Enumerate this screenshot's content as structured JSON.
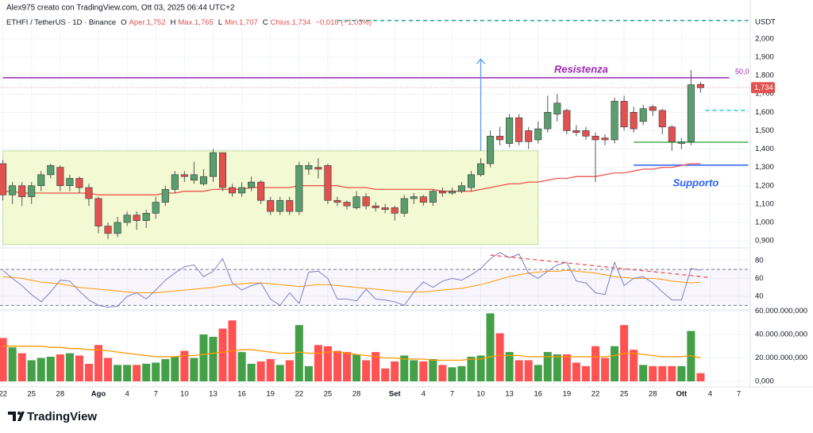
{
  "chart_data": {
    "type": "candlestick",
    "title": "Alex975 creato con TradingView.com, Ott 03, 2025 06:44 UTC+2",
    "symbol": "ETHFI / TetherUS · 1D · Binance",
    "ohlc_legend": [
      {
        "letter": "O",
        "text": "Aper.1,752"
      },
      {
        "letter": "H",
        "text": "Max.1,765"
      },
      {
        "letter": "L",
        "text": "Min.1,707"
      },
      {
        "letter": "C",
        "text": "Chius.1,734"
      }
    ],
    "change": "−0,018 (−1,03%)",
    "logo": "TradingView",
    "xticks": [
      {
        "value": 0,
        "label": "22"
      },
      {
        "value": 3,
        "label": "25"
      },
      {
        "value": 6,
        "label": "28"
      },
      {
        "value": 10,
        "label": "Ago"
      },
      {
        "value": 13,
        "label": "4"
      },
      {
        "value": 16,
        "label": "7"
      },
      {
        "value": 19,
        "label": "10"
      },
      {
        "value": 22,
        "label": "13"
      },
      {
        "value": 25,
        "label": "16"
      },
      {
        "value": 28,
        "label": "19"
      },
      {
        "value": 31,
        "label": "22"
      },
      {
        "value": 34,
        "label": "25"
      },
      {
        "value": 37,
        "label": "28"
      },
      {
        "value": 41,
        "label": "Set"
      },
      {
        "value": 44,
        "label": "4"
      },
      {
        "value": 47,
        "label": "7"
      },
      {
        "value": 50,
        "label": "10"
      },
      {
        "value": 53,
        "label": "13"
      },
      {
        "value": 56,
        "label": "16"
      },
      {
        "value": 59,
        "label": "19"
      },
      {
        "value": 62,
        "label": "22"
      },
      {
        "value": 65,
        "label": "25"
      },
      {
        "value": 68,
        "label": "28"
      },
      {
        "value": 71,
        "label": "Ott"
      },
      {
        "value": 74,
        "label": "4"
      },
      {
        "value": 77,
        "label": "7"
      }
    ],
    "xlim": [
      -0.3,
      78.2
    ],
    "price": {
      "unit": "USDT",
      "up_color": "#5a9e6f",
      "down_color": "#e0524f",
      "ylim": [
        0.87,
        2.125
      ],
      "yticks": [
        {
          "value": 0.9,
          "label": "0,900"
        },
        {
          "value": 1.0,
          "label": "1,000"
        },
        {
          "value": 1.1,
          "label": "1,100"
        },
        {
          "value": 1.2,
          "label": "1,200"
        },
        {
          "value": 1.3,
          "label": "1,300"
        },
        {
          "value": 1.4,
          "label": "1,400"
        },
        {
          "value": 1.5,
          "label": "1,500"
        },
        {
          "value": 1.6,
          "label": "1,600"
        },
        {
          "value": 1.7,
          "label": "1,700"
        },
        {
          "value": 1.8,
          "label": "1,800"
        },
        {
          "value": 1.9,
          "label": "1,900"
        },
        {
          "value": 2.0,
          "label": "2,000"
        }
      ],
      "open": [
        1.32,
        1.15,
        1.2,
        1.14,
        1.2,
        1.26,
        1.3,
        1.2,
        1.24,
        1.19,
        1.13,
        0.98,
        0.94,
        1.0,
        1.04,
        1.01,
        1.05,
        1.11,
        1.18,
        1.26,
        1.23,
        1.21,
        1.25,
        1.38,
        1.19,
        1.16,
        1.19,
        1.22,
        1.12,
        1.06,
        1.12,
        1.06,
        1.29,
        1.3,
        1.31,
        1.12,
        1.11,
        1.08,
        1.14,
        1.09,
        1.08,
        1.08,
        1.05,
        1.13,
        1.14,
        1.11,
        1.17,
        1.16,
        1.17,
        1.19,
        1.26,
        1.32,
        1.47,
        1.43,
        1.57,
        1.5,
        1.45,
        1.51,
        1.59,
        1.61,
        1.5,
        1.5,
        1.47,
        1.46,
        1.45,
        1.66,
        1.6,
        1.55,
        1.63,
        1.61,
        1.52,
        1.43,
        1.44,
        1.752
      ],
      "high": [
        1.34,
        1.22,
        1.22,
        1.22,
        1.28,
        1.32,
        1.31,
        1.26,
        1.25,
        1.21,
        1.14,
        1.0,
        1.03,
        1.06,
        1.06,
        1.07,
        1.14,
        1.2,
        1.28,
        1.28,
        1.33,
        1.29,
        1.4,
        1.38,
        1.21,
        1.22,
        1.25,
        1.23,
        1.14,
        1.14,
        1.14,
        1.33,
        1.33,
        1.35,
        1.32,
        1.14,
        1.12,
        1.17,
        1.16,
        1.11,
        1.1,
        1.09,
        1.15,
        1.16,
        1.15,
        1.18,
        1.19,
        1.19,
        1.22,
        1.28,
        1.35,
        1.5,
        1.52,
        1.59,
        1.59,
        1.52,
        1.55,
        1.69,
        1.7,
        1.62,
        1.53,
        1.52,
        1.49,
        1.48,
        1.68,
        1.69,
        1.63,
        1.64,
        1.64,
        1.62,
        1.53,
        1.46,
        1.83,
        1.765
      ],
      "low": [
        1.12,
        1.1,
        1.09,
        1.1,
        1.17,
        1.24,
        1.17,
        1.17,
        1.16,
        1.09,
        0.94,
        0.91,
        0.92,
        0.98,
        0.96,
        0.97,
        1.02,
        1.09,
        1.16,
        1.22,
        1.21,
        1.2,
        1.22,
        1.17,
        1.14,
        1.14,
        1.17,
        1.1,
        1.04,
        1.04,
        1.04,
        1.04,
        1.26,
        1.24,
        1.1,
        1.09,
        1.07,
        1.07,
        1.07,
        1.06,
        1.05,
        1.01,
        1.03,
        1.1,
        1.09,
        1.09,
        1.14,
        1.15,
        1.16,
        1.17,
        1.25,
        1.3,
        1.42,
        1.41,
        1.42,
        1.4,
        1.43,
        1.49,
        1.55,
        1.48,
        1.47,
        1.45,
        1.22,
        1.42,
        1.43,
        1.5,
        1.49,
        1.53,
        1.58,
        1.48,
        1.39,
        1.4,
        1.42,
        1.707
      ],
      "close": [
        1.15,
        1.2,
        1.14,
        1.2,
        1.26,
        1.31,
        1.2,
        1.24,
        1.19,
        1.13,
        0.98,
        0.94,
        1.0,
        1.04,
        1.01,
        1.05,
        1.11,
        1.18,
        1.26,
        1.25,
        1.26,
        1.25,
        1.38,
        1.19,
        1.16,
        1.19,
        1.22,
        1.12,
        1.06,
        1.12,
        1.06,
        1.31,
        1.31,
        1.29,
        1.12,
        1.11,
        1.09,
        1.14,
        1.09,
        1.08,
        1.07,
        1.05,
        1.13,
        1.14,
        1.11,
        1.17,
        1.16,
        1.17,
        1.2,
        1.26,
        1.32,
        1.47,
        1.45,
        1.57,
        1.44,
        1.44,
        1.51,
        1.6,
        1.65,
        1.5,
        1.49,
        1.47,
        1.45,
        1.45,
        1.66,
        1.52,
        1.51,
        1.62,
        1.61,
        1.52,
        1.44,
        1.44,
        1.75,
        1.734
      ],
      "ma": {
        "color": "#ef5350",
        "values": [
          1.17,
          1.17,
          1.16,
          1.16,
          1.16,
          1.16,
          1.16,
          1.16,
          1.16,
          1.16,
          1.15,
          1.15,
          1.15,
          1.15,
          1.15,
          1.15,
          1.15,
          1.16,
          1.16,
          1.17,
          1.17,
          1.17,
          1.18,
          1.18,
          1.18,
          1.18,
          1.19,
          1.19,
          1.19,
          1.19,
          1.19,
          1.2,
          1.2,
          1.2,
          1.2,
          1.2,
          1.19,
          1.19,
          1.19,
          1.18,
          1.18,
          1.18,
          1.18,
          1.18,
          1.18,
          1.18,
          1.17,
          1.17,
          1.17,
          1.17,
          1.18,
          1.19,
          1.2,
          1.21,
          1.21,
          1.22,
          1.22,
          1.23,
          1.24,
          1.24,
          1.25,
          1.25,
          1.25,
          1.26,
          1.27,
          1.27,
          1.28,
          1.29,
          1.29,
          1.3,
          1.3,
          1.31,
          1.32,
          1.32
        ]
      },
      "last_price": {
        "value": 1.734,
        "label": "1,734"
      }
    },
    "drawings": {
      "range_box": {
        "x": [
          0,
          56
        ],
        "y": [
          0.88,
          1.39
        ],
        "color": "#f3f9d2"
      },
      "resistance": {
        "label": "Resistenza",
        "level_label": "50,0",
        "y": 1.788,
        "x": [
          0,
          76
        ],
        "color": "#9c27b0"
      },
      "support": {
        "label": "Supporto",
        "y": 1.312,
        "x": [
          66,
          78
        ],
        "color": "#2962ff"
      },
      "green_level": {
        "y": 1.437,
        "x": [
          66,
          78
        ],
        "color": "#4caf50"
      },
      "cyan_level": {
        "y": 1.61,
        "x": [
          73.5,
          78
        ],
        "color": "#26c6da"
      },
      "top_level": {
        "y": 2.1,
        "x": [
          35,
          78
        ],
        "color": "#26a69a"
      },
      "arrow": {
        "x": 50,
        "y": [
          1.39,
          1.89
        ],
        "color": "#5b9cf6"
      },
      "rsi_trend": {
        "x": [
          51,
          74
        ],
        "y": [
          86,
          61
        ],
        "color": "#ef5350"
      }
    },
    "rsi": {
      "color": "#7e7ec8",
      "ma_color": "#ff9800",
      "ylim": [
        25,
        94
      ],
      "yticks": [
        40,
        60,
        80
      ],
      "bands": [
        30,
        70
      ],
      "values": [
        69,
        60,
        52,
        42,
        34,
        45,
        58,
        57,
        46,
        36,
        30,
        28,
        29,
        40,
        44,
        37,
        47,
        58,
        66,
        73,
        75,
        62,
        68,
        82,
        55,
        47,
        52,
        55,
        37,
        30,
        44,
        32,
        67,
        68,
        60,
        37,
        37,
        35,
        48,
        37,
        36,
        34,
        30,
        45,
        56,
        50,
        57,
        60,
        58,
        64,
        71,
        82,
        89,
        83,
        87,
        66,
        60,
        68,
        75,
        78,
        57,
        55,
        44,
        42,
        78,
        52,
        60,
        62,
        55,
        45,
        36,
        36,
        71,
        69
      ],
      "ma": [
        62,
        61,
        60,
        58,
        56,
        55,
        54,
        52,
        50,
        49,
        48,
        47,
        46,
        45,
        44,
        44,
        44,
        45,
        46,
        47,
        48,
        49,
        50,
        52,
        53,
        54,
        55,
        55,
        54,
        53,
        52,
        51,
        52,
        53,
        53,
        52,
        51,
        50,
        49,
        48,
        47,
        46,
        45,
        45,
        45,
        46,
        47,
        48,
        49,
        51,
        53,
        56,
        59,
        62,
        64,
        66,
        67,
        68,
        68,
        69,
        68,
        67,
        66,
        64,
        62,
        61,
        60,
        60,
        60,
        59,
        57,
        56,
        55,
        56
      ]
    },
    "volume": {
      "up_color": "#43a047",
      "down_color": "#ff5252",
      "ma_color": "#ff9800",
      "ylim": [
        0,
        61000000
      ],
      "yticks": [
        {
          "value": 0,
          "label": "0,000"
        },
        {
          "value": 20000000,
          "label": "20.000.000,000"
        },
        {
          "value": 40000000,
          "label": "40.000.000,000"
        },
        {
          "value": 60000000,
          "label": "60.000.000,000"
        }
      ],
      "values": [
        37000000,
        29000000,
        24000000,
        18000000,
        20000000,
        21000000,
        23000000,
        24000000,
        22000000,
        15000000,
        31000000,
        20000000,
        14000000,
        14000000,
        14000000,
        15000000,
        16000000,
        19000000,
        21000000,
        26000000,
        20000000,
        40000000,
        38000000,
        45000000,
        52000000,
        25000000,
        15000000,
        17000000,
        19000000,
        14000000,
        18000000,
        48000000,
        13000000,
        31000000,
        30000000,
        26000000,
        25000000,
        23000000,
        18000000,
        25000000,
        11000000,
        17000000,
        22000000,
        18000000,
        17000000,
        19000000,
        14000000,
        12000000,
        13000000,
        21000000,
        22000000,
        58000000,
        41000000,
        25000000,
        18000000,
        18000000,
        14000000,
        25000000,
        23000000,
        23000000,
        16000000,
        13000000,
        30000000,
        20000000,
        30000000,
        48000000,
        27000000,
        14000000,
        13000000,
        13000000,
        13000000,
        13000000,
        43000000,
        7000000
      ],
      "ma": [
        30000000,
        30000000,
        30000000,
        30000000,
        30000000,
        29000000,
        29000000,
        28000000,
        28000000,
        27000000,
        27000000,
        26000000,
        25000000,
        24000000,
        23000000,
        22000000,
        21000000,
        21000000,
        21000000,
        22000000,
        22000000,
        23000000,
        24000000,
        25000000,
        26000000,
        27000000,
        27000000,
        26000000,
        25000000,
        24000000,
        24000000,
        25000000,
        24000000,
        24000000,
        25000000,
        25000000,
        24000000,
        23000000,
        22000000,
        21000000,
        20000000,
        20000000,
        19000000,
        19000000,
        19000000,
        18000000,
        18000000,
        18000000,
        18000000,
        19000000,
        19000000,
        21000000,
        22000000,
        22000000,
        22000000,
        21000000,
        21000000,
        21000000,
        21000000,
        21000000,
        21000000,
        21000000,
        21000000,
        21000000,
        22000000,
        24000000,
        24000000,
        23000000,
        22000000,
        21000000,
        21000000,
        21000000,
        22000000,
        20000000
      ]
    }
  }
}
